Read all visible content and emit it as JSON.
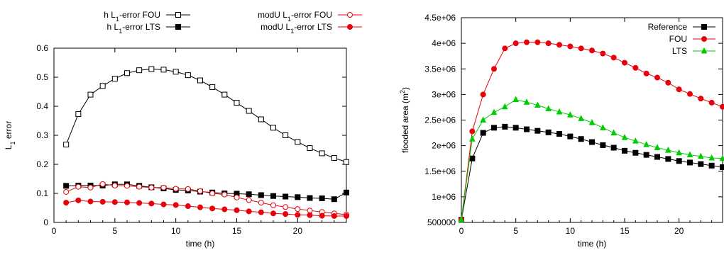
{
  "chart_data": [
    {
      "type": "line",
      "xlabel": "time (h)",
      "ylabel": "L1 error",
      "xlim": [
        0,
        24
      ],
      "ylim": [
        0,
        0.6
      ],
      "xticks": [
        "0",
        "5",
        "10",
        "15",
        "20"
      ],
      "yticks": [
        "0",
        "0.1",
        "0.2",
        "0.3",
        "0.4",
        "0.5",
        "0.6"
      ],
      "legend_position": "top",
      "series": [
        {
          "name": "h L1-error FOU",
          "color": "#000000",
          "marker": "square-open",
          "x": [
            1,
            2,
            3,
            4,
            5,
            6,
            7,
            8,
            9,
            10,
            11,
            12,
            13,
            14,
            15,
            16,
            17,
            18,
            19,
            20,
            21,
            22,
            23,
            24
          ],
          "y": [
            0.268,
            0.373,
            0.44,
            0.47,
            0.495,
            0.514,
            0.524,
            0.528,
            0.526,
            0.519,
            0.507,
            0.489,
            0.466,
            0.44,
            0.412,
            0.384,
            0.355,
            0.326,
            0.3,
            0.277,
            0.256,
            0.238,
            0.222,
            0.208
          ]
        },
        {
          "name": "h L1-error LTS",
          "color": "#000000",
          "marker": "square-filled",
          "x": [
            1,
            2,
            3,
            4,
            5,
            6,
            7,
            8,
            9,
            10,
            11,
            12,
            13,
            14,
            15,
            16,
            17,
            18,
            19,
            20,
            21,
            22,
            23,
            24
          ],
          "y": [
            0.126,
            0.127,
            0.127,
            0.127,
            0.131,
            0.131,
            0.126,
            0.121,
            0.117,
            0.112,
            0.11,
            0.106,
            0.103,
            0.1,
            0.099,
            0.097,
            0.094,
            0.091,
            0.089,
            0.087,
            0.084,
            0.083,
            0.08,
            0.103
          ]
        },
        {
          "name": "modU L1-error FOU",
          "color": "#e8000b",
          "marker": "circle-open",
          "x": [
            1,
            2,
            3,
            4,
            5,
            6,
            7,
            8,
            9,
            10,
            11,
            12,
            13,
            14,
            15,
            16,
            17,
            18,
            19,
            20,
            21,
            22,
            23,
            24
          ],
          "y": [
            0.105,
            0.123,
            0.12,
            0.132,
            0.127,
            0.126,
            0.123,
            0.12,
            0.12,
            0.116,
            0.115,
            0.108,
            0.1,
            0.096,
            0.086,
            0.077,
            0.068,
            0.059,
            0.053,
            0.046,
            0.041,
            0.036,
            0.031,
            0.027
          ]
        },
        {
          "name": "modU L1-error LTS",
          "color": "#e8000b",
          "marker": "circle-filled",
          "x": [
            1,
            2,
            3,
            4,
            5,
            6,
            7,
            8,
            9,
            10,
            11,
            12,
            13,
            14,
            15,
            16,
            17,
            18,
            19,
            20,
            21,
            22,
            23,
            24
          ],
          "y": [
            0.068,
            0.076,
            0.072,
            0.071,
            0.07,
            0.069,
            0.067,
            0.065,
            0.062,
            0.06,
            0.056,
            0.052,
            0.048,
            0.045,
            0.042,
            0.038,
            0.035,
            0.031,
            0.029,
            0.026,
            0.025,
            0.023,
            0.022,
            0.022
          ]
        }
      ]
    },
    {
      "type": "line",
      "xlabel": "time (h)",
      "ylabel": "flooded area (m2)",
      "xlim": [
        0,
        24
      ],
      "ylim": [
        500000,
        4500000
      ],
      "xticks": [
        "0",
        "5",
        "10",
        "15",
        "20"
      ],
      "yticks": [
        "500000",
        "1e+06",
        "1.5e+06",
        "2e+06",
        "2.5e+06",
        "3e+06",
        "3.5e+06",
        "4e+06",
        "4.5e+06"
      ],
      "legend_position": "top-right",
      "series": [
        {
          "name": "Reference",
          "color": "#000000",
          "marker": "square-filled",
          "x": [
            0,
            1,
            2,
            3,
            4,
            5,
            6,
            7,
            8,
            9,
            10,
            11,
            12,
            13,
            14,
            15,
            16,
            17,
            18,
            19,
            20,
            21,
            22,
            23,
            24
          ],
          "y": [
            550000,
            1750000,
            2250000,
            2350000,
            2370000,
            2350000,
            2320000,
            2290000,
            2260000,
            2230000,
            2180000,
            2130000,
            2070000,
            2010000,
            1960000,
            1900000,
            1860000,
            1820000,
            1780000,
            1740000,
            1700000,
            1670000,
            1640000,
            1610000,
            1580000
          ]
        },
        {
          "name": "FOU",
          "color": "#e8000b",
          "marker": "circle-filled",
          "x": [
            0,
            1,
            2,
            3,
            4,
            5,
            6,
            7,
            8,
            9,
            10,
            11,
            12,
            13,
            14,
            15,
            16,
            17,
            18,
            19,
            20,
            21,
            22,
            23,
            24
          ],
          "y": [
            550000,
            2280000,
            3000000,
            3500000,
            3900000,
            4000000,
            4020000,
            4020000,
            4000000,
            3970000,
            3940000,
            3900000,
            3860000,
            3800000,
            3720000,
            3620000,
            3520000,
            3410000,
            3330000,
            3230000,
            3100000,
            3010000,
            2920000,
            2840000,
            2760000
          ]
        },
        {
          "name": "LTS",
          "color": "#00cc00",
          "marker": "triangle-filled",
          "x": [
            0,
            1,
            2,
            3,
            4,
            5,
            6,
            7,
            8,
            9,
            10,
            11,
            12,
            13,
            14,
            15,
            16,
            17,
            18,
            19,
            20,
            21,
            22,
            23,
            24
          ],
          "y": [
            550000,
            2130000,
            2500000,
            2650000,
            2760000,
            2900000,
            2850000,
            2790000,
            2720000,
            2660000,
            2600000,
            2530000,
            2450000,
            2350000,
            2250000,
            2160000,
            2090000,
            2020000,
            1960000,
            1910000,
            1860000,
            1820000,
            1790000,
            1760000,
            1750000
          ]
        }
      ]
    }
  ]
}
